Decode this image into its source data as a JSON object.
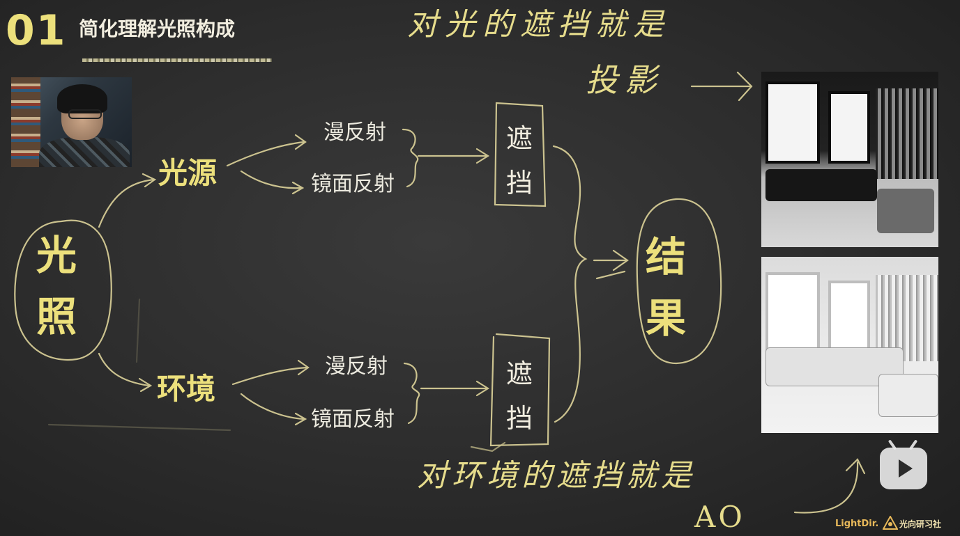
{
  "header": {
    "number": "01",
    "title": "简化理解光照构成"
  },
  "diagram": {
    "root": {
      "line1": "光",
      "line2": "照"
    },
    "light_source": "光源",
    "environment": "环境",
    "light_branch": {
      "diffuse": "漫反射",
      "specular": "镜面反射"
    },
    "env_branch": {
      "diffuse": "漫反射",
      "specular": "镜面反射"
    },
    "occlusion_top": {
      "line1": "遮",
      "line2": "挡"
    },
    "occlusion_bottom": {
      "line1": "遮",
      "line2": "挡"
    },
    "result": {
      "line1": "结",
      "line2": "果"
    }
  },
  "annotations": {
    "shadow_line1": "对光的遮挡就是",
    "shadow_line2": "投影",
    "ao_line1": "对环境的遮挡就是",
    "ao_line2": "AO"
  },
  "footer": {
    "brand_en": "LightDir.",
    "brand_cn": "光向研习社"
  },
  "colors": {
    "chalkboard": "#2c2c2c",
    "chalk_yellow": "#ece07c",
    "chalk_white": "#eceadf",
    "brand_orange": "#e8b95a"
  },
  "icons": {
    "player": "bilibili-play-icon",
    "brand": "lightdir-logo-icon"
  }
}
